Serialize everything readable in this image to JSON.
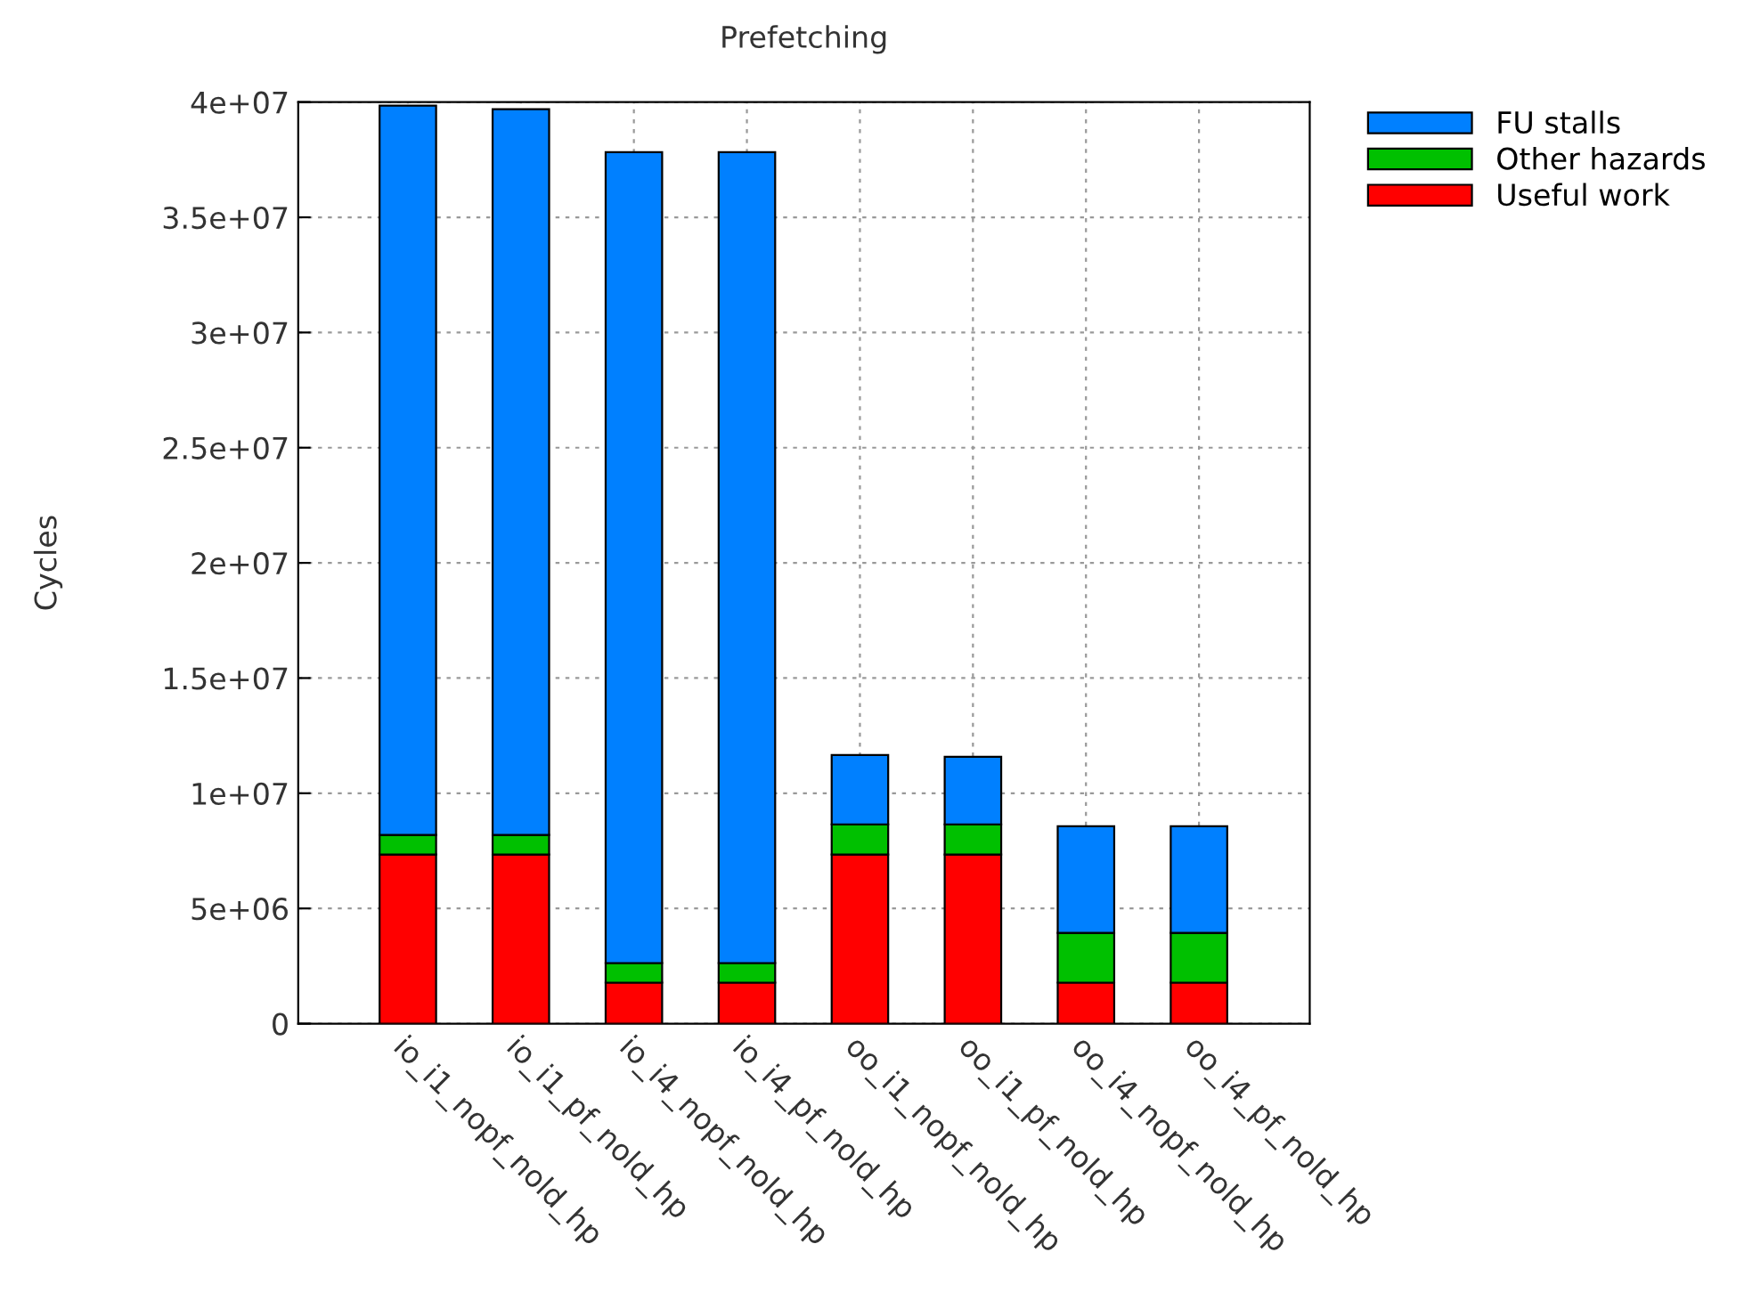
{
  "chart_data": {
    "type": "bar",
    "title": "Prefetching",
    "ylabel": "Cycles",
    "stacked": true,
    "categories": [
      "io_i1_nopf_nold_hp",
      "io_i1_pf_nold_hp",
      "io_i4_nopf_nold_hp",
      "io_i4_pf_nold_hp",
      "oo_i1_nopf_nold_hp",
      "oo_i1_pf_nold_hp",
      "oo_i4_nopf_nold_hp",
      "oo_i4_pf_nold_hp"
    ],
    "series": [
      {
        "name": "Useful work",
        "color": "#ff0000",
        "values": [
          7340000,
          7340000,
          1780000,
          1780000,
          7340000,
          7340000,
          1780000,
          1780000
        ]
      },
      {
        "name": "Other hazards",
        "color": "#00c000",
        "values": [
          850000,
          850000,
          850000,
          850000,
          1310000,
          1310000,
          2160000,
          2160000
        ]
      },
      {
        "name": "FU stalls",
        "color": "#0080ff",
        "values": [
          31660000,
          31500000,
          35200000,
          35200000,
          3010000,
          2930000,
          4630000,
          4630000
        ]
      }
    ],
    "ylim": [
      0,
      40000000
    ],
    "yticks": [
      {
        "value": 0,
        "label": "0"
      },
      {
        "value": 5000000,
        "label": "5e+06"
      },
      {
        "value": 10000000,
        "label": "1e+07"
      },
      {
        "value": 15000000,
        "label": "1.5e+07"
      },
      {
        "value": 20000000,
        "label": "2e+07"
      },
      {
        "value": 25000000,
        "label": "2.5e+07"
      },
      {
        "value": 30000000,
        "label": "3e+07"
      },
      {
        "value": 35000000,
        "label": "3.5e+07"
      },
      {
        "value": 40000000,
        "label": "4e+07"
      }
    ],
    "grid": true,
    "legend": "top right"
  }
}
